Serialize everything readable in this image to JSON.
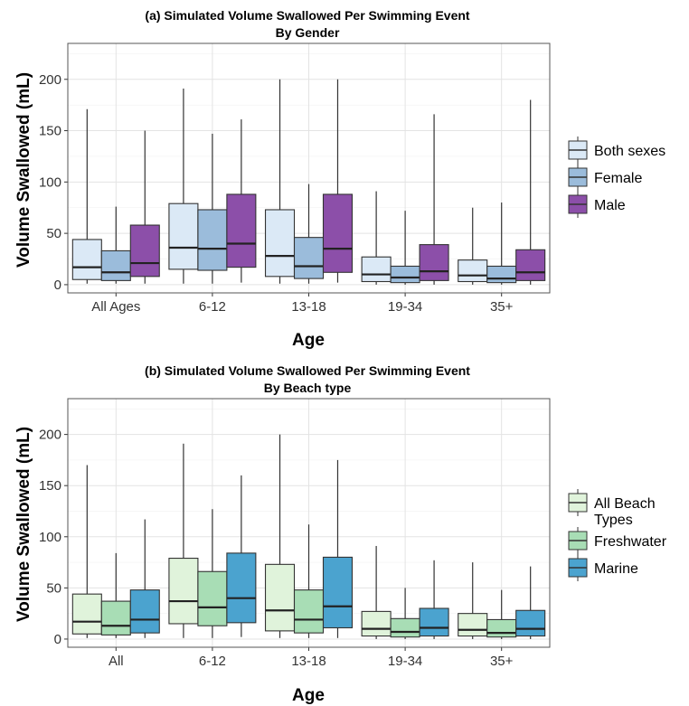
{
  "chart_data": [
    {
      "type": "boxplot",
      "title": "(a) Simulated Volume Swallowed Per Swimming Event",
      "subtitle": "By Gender",
      "xlabel": "Age",
      "ylabel": "Volume Swallowed (mL)",
      "ylim": [
        -8,
        235
      ],
      "yticks": [
        0,
        50,
        100,
        150,
        200
      ],
      "grid": true,
      "legend_position": "right",
      "categories": [
        "All Ages",
        "6-12",
        "13-18",
        "19-34",
        "35+"
      ],
      "series": [
        {
          "name": "Both sexes",
          "color": "#dbe9f6",
          "boxes": [
            {
              "whisker_low": 1,
              "q1": 5,
              "median": 17,
              "q3": 44,
              "whisker_high": 171
            },
            {
              "whisker_low": 1,
              "q1": 15,
              "median": 36,
              "q3": 79,
              "whisker_high": 191
            },
            {
              "whisker_low": 1,
              "q1": 8,
              "median": 28,
              "q3": 73,
              "whisker_high": 200
            },
            {
              "whisker_low": 0,
              "q1": 3,
              "median": 10,
              "q3": 27,
              "whisker_high": 91
            },
            {
              "whisker_low": 0,
              "q1": 3,
              "median": 9,
              "q3": 24,
              "whisker_high": 75
            }
          ]
        },
        {
          "name": "Female",
          "color": "#9bbcdb",
          "boxes": [
            {
              "whisker_low": 1,
              "q1": 4,
              "median": 12,
              "q3": 33,
              "whisker_high": 76
            },
            {
              "whisker_low": 1,
              "q1": 14,
              "median": 35,
              "q3": 73,
              "whisker_high": 147
            },
            {
              "whisker_low": 1,
              "q1": 6,
              "median": 18,
              "q3": 46,
              "whisker_high": 98
            },
            {
              "whisker_low": 0,
              "q1": 2,
              "median": 7,
              "q3": 18,
              "whisker_high": 72
            },
            {
              "whisker_low": 0,
              "q1": 2,
              "median": 6,
              "q3": 18,
              "whisker_high": 80
            }
          ]
        },
        {
          "name": "Male",
          "color": "#8c4fa9",
          "boxes": [
            {
              "whisker_low": 1,
              "q1": 8,
              "median": 21,
              "q3": 58,
              "whisker_high": 150
            },
            {
              "whisker_low": 2,
              "q1": 17,
              "median": 40,
              "q3": 88,
              "whisker_high": 161
            },
            {
              "whisker_low": 2,
              "q1": 12,
              "median": 35,
              "q3": 88,
              "whisker_high": 200
            },
            {
              "whisker_low": 0,
              "q1": 4,
              "median": 13,
              "q3": 39,
              "whisker_high": 166
            },
            {
              "whisker_low": 0,
              "q1": 4,
              "median": 12,
              "q3": 34,
              "whisker_high": 180
            }
          ]
        }
      ]
    },
    {
      "type": "boxplot",
      "title": "(b) Simulated Volume Swallowed Per Swimming Event",
      "subtitle": "By Beach type",
      "xlabel": "Age",
      "ylabel": "Volume Swallowed (mL)",
      "ylim": [
        -8,
        235
      ],
      "yticks": [
        0,
        50,
        100,
        150,
        200
      ],
      "grid": true,
      "legend_position": "right",
      "categories": [
        "All",
        "6-12",
        "13-18",
        "19-34",
        "35+"
      ],
      "series": [
        {
          "name": [
            "All Beach",
            "Types"
          ],
          "color": "#e0f3db",
          "boxes": [
            {
              "whisker_low": 1,
              "q1": 5,
              "median": 17,
              "q3": 44,
              "whisker_high": 170
            },
            {
              "whisker_low": 1,
              "q1": 15,
              "median": 37,
              "q3": 79,
              "whisker_high": 191
            },
            {
              "whisker_low": 1,
              "q1": 8,
              "median": 28,
              "q3": 73,
              "whisker_high": 200
            },
            {
              "whisker_low": 0,
              "q1": 3,
              "median": 10,
              "q3": 27,
              "whisker_high": 91
            },
            {
              "whisker_low": 0,
              "q1": 3,
              "median": 9,
              "q3": 25,
              "whisker_high": 75
            }
          ]
        },
        {
          "name": "Freshwater",
          "color": "#a8ddb5",
          "boxes": [
            {
              "whisker_low": 1,
              "q1": 4,
              "median": 13,
              "q3": 37,
              "whisker_high": 84
            },
            {
              "whisker_low": 1,
              "q1": 13,
              "median": 31,
              "q3": 66,
              "whisker_high": 127
            },
            {
              "whisker_low": 1,
              "q1": 6,
              "median": 19,
              "q3": 48,
              "whisker_high": 112
            },
            {
              "whisker_low": 0,
              "q1": 2,
              "median": 7,
              "q3": 20,
              "whisker_high": 50
            },
            {
              "whisker_low": 0,
              "q1": 2,
              "median": 6,
              "q3": 19,
              "whisker_high": 48
            }
          ]
        },
        {
          "name": "Marine",
          "color": "#4ba3cf",
          "boxes": [
            {
              "whisker_low": 1,
              "q1": 6,
              "median": 19,
              "q3": 48,
              "whisker_high": 117
            },
            {
              "whisker_low": 2,
              "q1": 16,
              "median": 40,
              "q3": 84,
              "whisker_high": 160
            },
            {
              "whisker_low": 1,
              "q1": 11,
              "median": 32,
              "q3": 80,
              "whisker_high": 175
            },
            {
              "whisker_low": 0,
              "q1": 3,
              "median": 11,
              "q3": 30,
              "whisker_high": 77
            },
            {
              "whisker_low": 0,
              "q1": 3,
              "median": 10,
              "q3": 28,
              "whisker_high": 71
            }
          ]
        }
      ]
    }
  ]
}
